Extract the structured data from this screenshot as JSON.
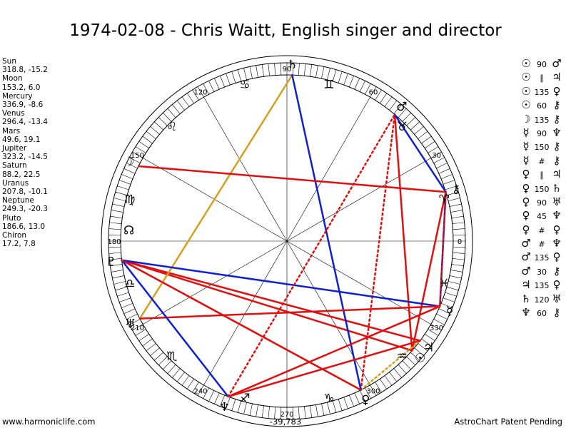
{
  "title": "1974-02-08 - Chris Waitt, English singer and director",
  "planets": [
    {
      "name": "Sun",
      "glyph": "☉",
      "pos": "318.8, -15.2",
      "lon": 318.8
    },
    {
      "name": "Moon",
      "glyph": "☽",
      "pos": "153.2, 6.0",
      "lon": 153.2
    },
    {
      "name": "Mercury",
      "glyph": "☿",
      "pos": "336.9, -8.6",
      "lon": 336.9
    },
    {
      "name": "Venus",
      "glyph": "♀",
      "pos": "296.4, -13.4",
      "lon": 296.4
    },
    {
      "name": "Mars",
      "glyph": "♂",
      "pos": "49.6, 19.1",
      "lon": 49.6
    },
    {
      "name": "Jupiter",
      "glyph": "♃",
      "pos": "323.2, -14.5",
      "lon": 323.2
    },
    {
      "name": "Saturn",
      "glyph": "♄",
      "pos": "88.2, 22.5",
      "lon": 88.2
    },
    {
      "name": "Uranus",
      "glyph": "♅",
      "pos": "207.8, -10.1",
      "lon": 207.8
    },
    {
      "name": "Neptune",
      "glyph": "♆",
      "pos": "249.3, -20.3",
      "lon": 249.3
    },
    {
      "name": "Pluto",
      "glyph": "♇",
      "pos": "186.6, 13.0",
      "lon": 186.6
    },
    {
      "name": "Chiron",
      "glyph": "⚷",
      "pos": "17.2, 7.8",
      "lon": 17.2
    }
  ],
  "node_glyph": "☊",
  "signs": [
    "♈",
    "♉",
    "♊",
    "♋",
    "♌",
    "♍",
    "♎",
    "♏",
    "♐",
    "♑",
    "♒",
    "♓"
  ],
  "degree_labels": [
    "0",
    "30",
    "60",
    "90",
    "120",
    "150",
    "180",
    "210",
    "240",
    "270",
    "300",
    "330"
  ],
  "aspects": [
    {
      "a": "☉",
      "deg": "90",
      "b": "♂"
    },
    {
      "a": "☉",
      "deg": "∥",
      "b": "♃"
    },
    {
      "a": "☉",
      "deg": "135",
      "b": "♀"
    },
    {
      "a": "☉",
      "deg": "60",
      "b": "⚷"
    },
    {
      "a": "☽",
      "deg": "135",
      "b": "⚷"
    },
    {
      "a": "☿",
      "deg": "90",
      "b": "♆"
    },
    {
      "a": "☿",
      "deg": "150",
      "b": "⚷"
    },
    {
      "a": "☿",
      "deg": "#",
      "b": "⚷"
    },
    {
      "a": "♀",
      "deg": "∥",
      "b": "♃"
    },
    {
      "a": "♀",
      "deg": "150",
      "b": "♄"
    },
    {
      "a": "♀",
      "deg": "90",
      "b": "♅"
    },
    {
      "a": "♀",
      "deg": "45",
      "b": "♆"
    },
    {
      "a": "♀",
      "deg": "#",
      "b": "♀"
    },
    {
      "a": "♂",
      "deg": "#",
      "b": "♆"
    },
    {
      "a": "♂",
      "deg": "135",
      "b": "♀"
    },
    {
      "a": "♂",
      "deg": "30",
      "b": "⚷"
    },
    {
      "a": "♃",
      "deg": "135",
      "b": "♀"
    },
    {
      "a": "♄",
      "deg": "120",
      "b": "♅"
    },
    {
      "a": "♆",
      "deg": "60",
      "b": "⚷"
    }
  ],
  "chart_lines": [
    {
      "from": 318.8,
      "to": 49.6,
      "color": "#e01010",
      "style": "solid"
    },
    {
      "from": 318.8,
      "to": 186.6,
      "color": "#e01010",
      "style": "solid"
    },
    {
      "from": 318.8,
      "to": 17.2,
      "color": "#e01010",
      "style": "solid"
    },
    {
      "from": 323.2,
      "to": 186.6,
      "color": "#e01010",
      "style": "solid"
    },
    {
      "from": 296.4,
      "to": 186.6,
      "color": "#e01010",
      "style": "solid"
    },
    {
      "from": 296.4,
      "to": 49.6,
      "color": "#e01010",
      "style": "dotted"
    },
    {
      "from": 296.4,
      "to": 323.2,
      "color": "#d4a020",
      "style": "dotted"
    },
    {
      "from": 88.2,
      "to": 207.8,
      "color": "#d4a020",
      "style": "solid"
    },
    {
      "from": 88.2,
      "to": 296.4,
      "color": "#1020d0",
      "style": "solid"
    },
    {
      "from": 49.6,
      "to": 17.2,
      "color": "#1020d0",
      "style": "solid"
    },
    {
      "from": 17.2,
      "to": 336.9,
      "color": "#1020d0",
      "style": "solid"
    },
    {
      "from": 17.2,
      "to": 153.2,
      "color": "#e01010",
      "style": "solid"
    },
    {
      "from": 17.2,
      "to": 336.9,
      "color": "#e01010",
      "style": "dotted"
    },
    {
      "from": 336.9,
      "to": 186.6,
      "color": "#1020d0",
      "style": "solid"
    },
    {
      "from": 336.9,
      "to": 249.3,
      "color": "#e01010",
      "style": "solid"
    },
    {
      "from": 336.9,
      "to": 207.8,
      "color": "#e01010",
      "style": "solid"
    },
    {
      "from": 186.6,
      "to": 249.3,
      "color": "#1020d0",
      "style": "solid"
    },
    {
      "from": 186.6,
      "to": 296.4,
      "color": "#e01010",
      "style": "dotted"
    },
    {
      "from": 249.3,
      "to": 49.6,
      "color": "#e01010",
      "style": "dotted"
    },
    {
      "from": 249.3,
      "to": 323.2,
      "color": "#e01010",
      "style": "solid"
    }
  ],
  "center_value": "-39,783",
  "footer_left": "www.harmoniclife.com",
  "footer_right": "AstroChart Patent Pending"
}
